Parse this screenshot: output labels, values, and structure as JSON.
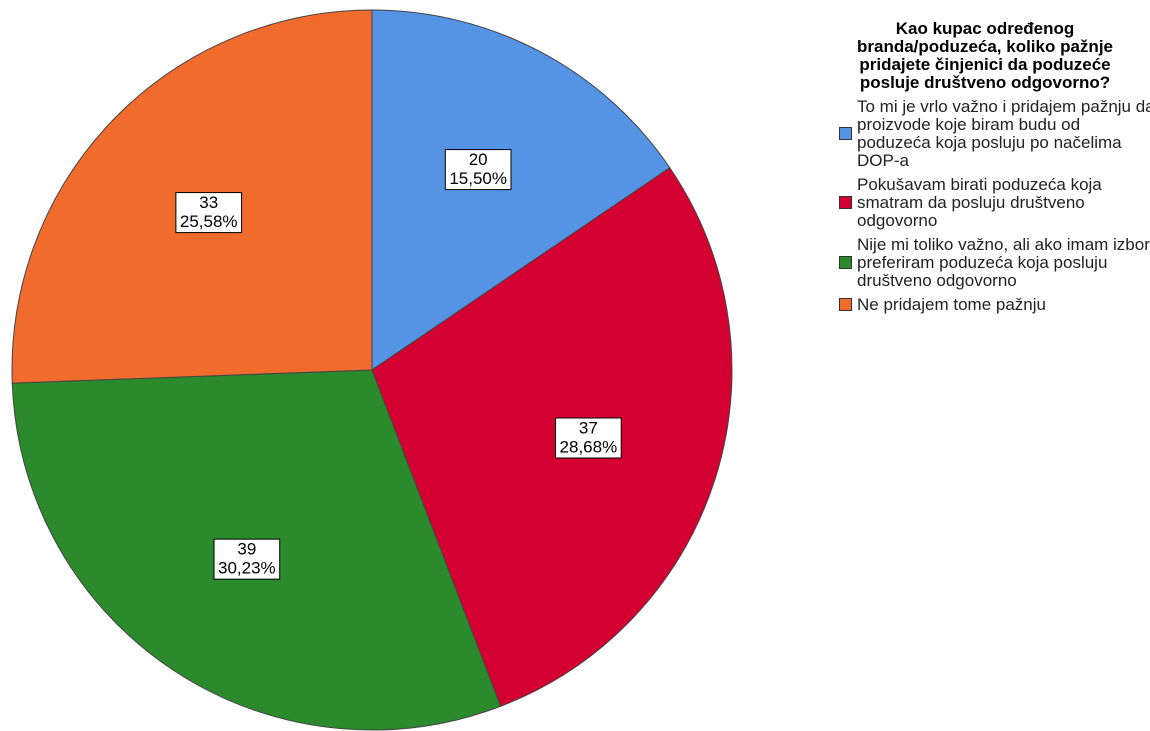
{
  "chart_data": {
    "type": "pie",
    "legend_title": "Kao kupac određenog branda/poduzeća, koliko pažnje pridajete činjenici da poduzeće posluje društveno odgovorno?",
    "categories": [
      "To mi je vrlo važno i pridajem pažnju da proizvode koje biram budu od poduzeća koja posluju po načelima DOP-a",
      "Pokušavam birati poduzeća koja smatram da posluju društveno odgovorno",
      "Nije mi toliko važno, ali ako imam izbor preferiram poduzeća koja posluju društveno odgovorno",
      "Ne pridajem tome pažnju"
    ],
    "values": [
      20,
      37,
      39,
      33
    ],
    "percentages": [
      15.5,
      28.68,
      30.23,
      25.58
    ],
    "percentage_labels": [
      "15,50%",
      "28,68%",
      "30,23%",
      "25,58%"
    ],
    "colors": [
      "#5594e4",
      "#d50032",
      "#2b8a2b",
      "#f06b2c"
    ],
    "legend": "right"
  }
}
